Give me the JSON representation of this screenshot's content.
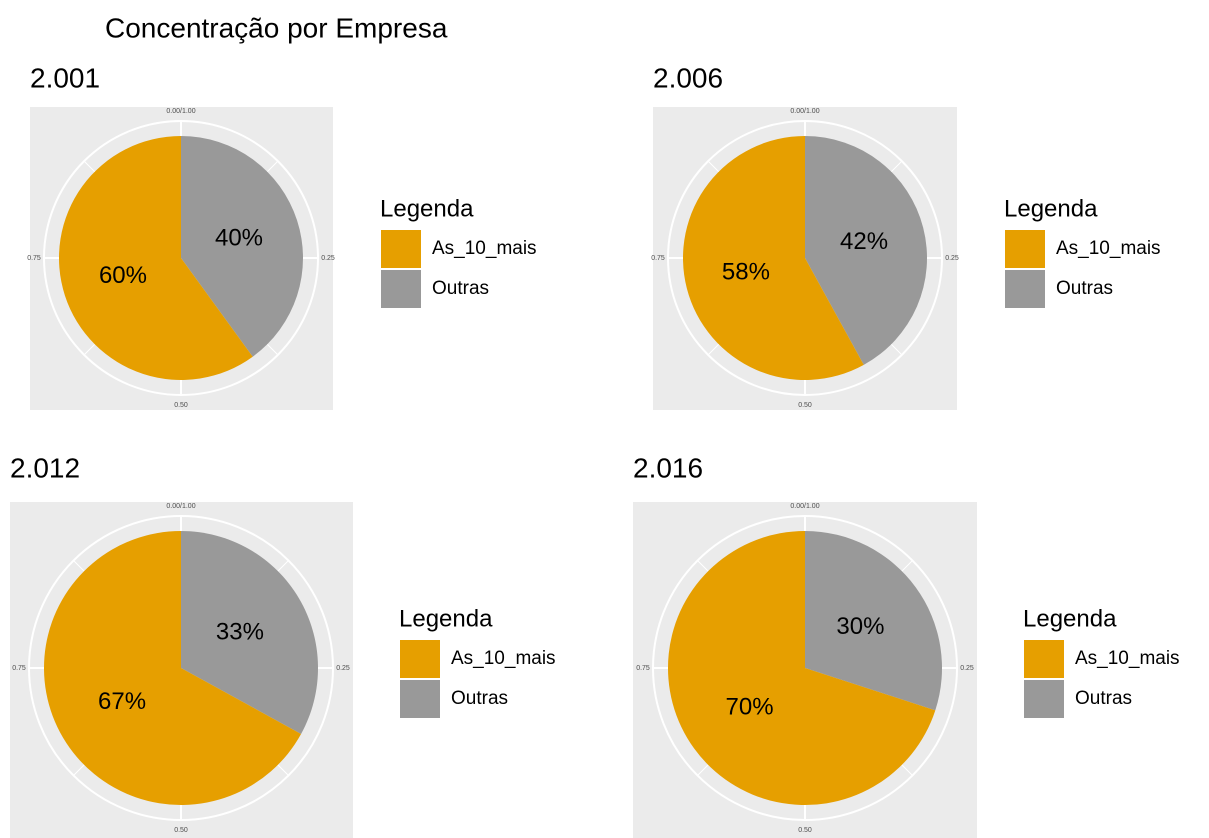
{
  "title": "Concentração por Empresa",
  "chart_data": [
    {
      "type": "pie",
      "title": "2.001",
      "legend_title": "Legenda",
      "categories": [
        "As_10_mais",
        "Outras"
      ],
      "values": [
        60,
        40
      ],
      "value_labels": [
        "60%",
        "40%"
      ],
      "colors": [
        "#e69f00",
        "#999999"
      ],
      "ticks": [
        {
          "value": 0,
          "label": "0.00/1.00"
        },
        0.25,
        {
          "value": 0.5,
          "label": "0.50"
        },
        0.75
      ]
    },
    {
      "type": "pie",
      "title": "2.006",
      "legend_title": "Legenda",
      "categories": [
        "As_10_mais",
        "Outras"
      ],
      "values": [
        58,
        42
      ],
      "value_labels": [
        "58%",
        "42%"
      ],
      "colors": [
        "#e69f00",
        "#999999"
      ],
      "ticks": [
        {
          "value": 0,
          "label": "0.00/1.00"
        },
        0.25,
        {
          "value": 0.5,
          "label": "0.50"
        },
        0.75
      ]
    },
    {
      "type": "pie",
      "title": "2.012",
      "legend_title": "Legenda",
      "categories": [
        "As_10_mais",
        "Outras"
      ],
      "values": [
        67,
        33
      ],
      "value_labels": [
        "67%",
        "33%"
      ],
      "colors": [
        "#e69f00",
        "#999999"
      ],
      "ticks": [
        {
          "value": 0,
          "label": "0.00/1.00"
        },
        0.25,
        {
          "value": 0.5,
          "label": "0.50"
        },
        0.75
      ]
    },
    {
      "type": "pie",
      "title": "2.016",
      "legend_title": "Legenda",
      "categories": [
        "As_10_mais",
        "Outras"
      ],
      "values": [
        70,
        30
      ],
      "value_labels": [
        "70%",
        "30%"
      ],
      "colors": [
        "#e69f00",
        "#999999"
      ],
      "ticks": [
        {
          "value": 0,
          "label": "0.00/1.00"
        },
        0.25,
        {
          "value": 0.5,
          "label": "0.50"
        },
        0.75
      ]
    }
  ]
}
